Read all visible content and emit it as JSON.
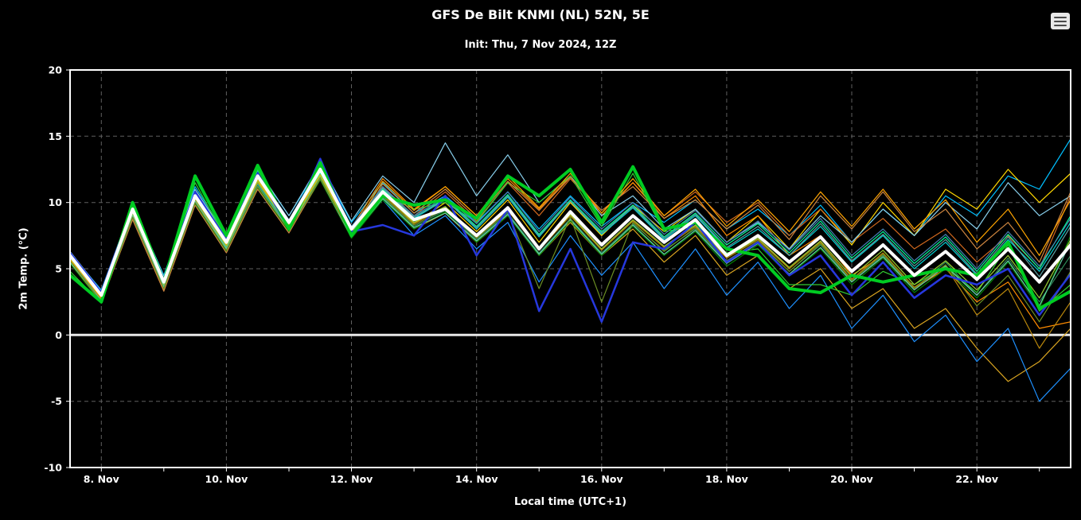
{
  "header": {
    "title": "GFS De Bilt KNMI (NL) 52N, 5E",
    "subtitle": "Init: Thu, 7 Nov 2024, 12Z"
  },
  "menu": {
    "icon": "hamburger-icon"
  },
  "chart_data": {
    "type": "line",
    "title": "GFS De Bilt KNMI (NL) 52N, 5E",
    "subtitle": "Init: Thu, 7 Nov 2024, 12Z",
    "xlabel": "Local time (UTC+1)",
    "ylabel": "2m Temp. (°C)",
    "xlim": [
      7.5,
      23.5
    ],
    "ylim": [
      -10,
      20
    ],
    "grid": true,
    "legend": "none",
    "xticks": [
      {
        "value": 8,
        "label": "8. Nov"
      },
      {
        "value": 10,
        "label": "10. Nov"
      },
      {
        "value": 12,
        "label": "12. Nov"
      },
      {
        "value": 14,
        "label": "14. Nov"
      },
      {
        "value": 16,
        "label": "16. Nov"
      },
      {
        "value": 18,
        "label": "18. Nov"
      },
      {
        "value": 20,
        "label": "20. Nov"
      },
      {
        "value": 22,
        "label": "22. Nov"
      }
    ],
    "yticks": [
      20,
      15,
      10,
      5,
      0,
      -5,
      -10
    ],
    "zero_line": 0,
    "colors": {
      "background": "#000000",
      "frame": "#ffffff",
      "grid": "#5f5f5f",
      "zero": "#e8e8e8",
      "text": "#ffffff"
    },
    "x": [
      7.5,
      8,
      8.5,
      9,
      9.5,
      10,
      10.5,
      11,
      11.5,
      12,
      12.5,
      13,
      13.5,
      14,
      14.5,
      15,
      15.5,
      16,
      16.5,
      17,
      17.5,
      18,
      18.5,
      19,
      19.5,
      20,
      20.5,
      21,
      21.5,
      22,
      22.5,
      23,
      23.5
    ],
    "series": [
      {
        "name": "ens-01",
        "color": "#00bfff",
        "width": 1.2,
        "values": [
          6.2,
          3.4,
          9.8,
          4.5,
          11.2,
          7.5,
          12.4,
          9,
          12.8,
          8.5,
          11.5,
          9.2,
          10.5,
          8.5,
          10.8,
          8,
          10.5,
          8.2,
          10,
          8.5,
          10.2,
          8,
          9.5,
          7.5,
          9.8,
          7,
          9.5,
          7.5,
          10.5,
          9,
          12,
          11,
          14.8
        ]
      },
      {
        "name": "ens-02",
        "color": "#ffd700",
        "width": 1.2,
        "values": [
          5.8,
          2.6,
          9.2,
          3.6,
          10.2,
          6.6,
          11.6,
          8.2,
          12.2,
          7.7,
          11,
          8.4,
          10,
          7.8,
          10.2,
          7,
          10,
          7.5,
          9.8,
          7.8,
          9.5,
          7,
          9,
          6.5,
          9.5,
          6.8,
          10,
          7.5,
          11,
          9.5,
          12.5,
          10,
          12.2
        ]
      },
      {
        "name": "ens-03",
        "color": "#d2691e",
        "width": 1.2,
        "values": [
          5.5,
          2.5,
          8.8,
          3.4,
          10,
          6.4,
          11.2,
          8,
          12,
          7.6,
          11.2,
          9,
          10.8,
          8.6,
          11.5,
          9,
          11.8,
          9.2,
          11.5,
          9,
          10.8,
          8.5,
          10,
          7.5,
          9.5,
          7,
          8.8,
          6.5,
          8,
          5.5,
          7.5,
          5,
          10.5
        ]
      },
      {
        "name": "ens-04",
        "color": "#ff8c00",
        "width": 1.2,
        "values": [
          6.1,
          3.1,
          9.6,
          4.1,
          10.6,
          7.1,
          12.1,
          8.6,
          12.6,
          8.1,
          11.8,
          9.5,
          11.2,
          9,
          11.8,
          9.5,
          12,
          9,
          11.5,
          8.8,
          10.5,
          7.5,
          9,
          6,
          7.5,
          4.5,
          6,
          3.5,
          5,
          2.5,
          4,
          0.5,
          1
        ]
      },
      {
        "name": "ens-05",
        "color": "#daa520",
        "width": 1.2,
        "values": [
          5.9,
          2.9,
          9.3,
          3.9,
          10.3,
          6.8,
          11.8,
          8.3,
          12.3,
          7.8,
          10.5,
          8,
          9.2,
          7,
          9,
          6,
          8.5,
          6,
          8,
          5.5,
          7.5,
          4.5,
          6,
          3.5,
          5,
          2,
          3.5,
          0.5,
          2,
          -1,
          -3.5,
          -2,
          0.5
        ]
      },
      {
        "name": "ens-06",
        "color": "#1e90ff",
        "width": 1.2,
        "values": [
          6,
          3,
          9.4,
          4,
          10.4,
          7,
          11.9,
          8.4,
          12.4,
          7.9,
          10.2,
          7.5,
          9,
          6.5,
          8.5,
          4,
          7.5,
          4.5,
          7,
          3.5,
          6.5,
          3,
          5.5,
          2,
          4.5,
          0.5,
          3,
          -0.5,
          1.5,
          -2,
          0.5,
          -5,
          -2.5
        ]
      },
      {
        "name": "ens-07",
        "color": "#87ceeb",
        "width": 1.2,
        "values": [
          6.3,
          3.3,
          9.9,
          4.4,
          11,
          7.4,
          12.5,
          9,
          13,
          8.6,
          12,
          10,
          14.5,
          10.5,
          13.6,
          10,
          12,
          9,
          10.5,
          8,
          9.5,
          7,
          8.5,
          6.5,
          9,
          7,
          9.5,
          7.5,
          10,
          8,
          11.5,
          9,
          10.5
        ]
      },
      {
        "name": "ens-08",
        "color": "#00ced1",
        "width": 1.2,
        "values": [
          5.7,
          2.7,
          9.1,
          3.7,
          10.1,
          6.6,
          11.4,
          8.1,
          12.1,
          7.7,
          10.9,
          8.8,
          10.2,
          8,
          10.4,
          7.4,
          10.1,
          7.6,
          9.6,
          7.2,
          9,
          6.5,
          8,
          6,
          8.2,
          5.5,
          7.5,
          5,
          7,
          4.5,
          7.2,
          4.8,
          8.5
        ]
      },
      {
        "name": "ens-09",
        "color": "#2e8b57",
        "width": 1.2,
        "values": [
          5.6,
          2.6,
          9,
          3.6,
          10,
          6.5,
          11.3,
          8,
          11.9,
          7.5,
          10.4,
          8.2,
          9.4,
          7.2,
          9.2,
          6.2,
          8.8,
          6.2,
          8.4,
          6.4,
          8,
          5.5,
          7,
          4.8,
          6.8,
          4,
          6,
          3.5,
          5.5,
          3,
          5.8,
          2.5,
          6
        ]
      },
      {
        "name": "ens-10",
        "color": "#32cd32",
        "width": 1.2,
        "values": [
          4.8,
          2.4,
          9.8,
          3.8,
          11.5,
          7.2,
          12.5,
          8,
          12.8,
          7.4,
          10.6,
          9.5,
          10,
          8.5,
          11.5,
          10,
          12,
          8.2,
          12.2,
          7.8,
          8.2,
          6.2,
          6.5,
          3.8,
          3.8,
          3,
          4.8,
          3.8,
          5.2,
          3.2,
          6.8,
          1.8,
          3.8
        ]
      },
      {
        "name": "ens-11",
        "color": "#008000",
        "width": 1.2,
        "values": [
          5.4,
          2.4,
          8.9,
          3.5,
          9.9,
          6.3,
          11.1,
          7.8,
          11.7,
          7.3,
          10.2,
          8,
          9.3,
          7,
          9,
          6,
          8.6,
          6,
          8.2,
          6,
          7.8,
          5.2,
          6.8,
          4.5,
          6.5,
          3.8,
          5.8,
          3.2,
          5,
          2.8,
          5.5,
          2,
          7.5
        ]
      },
      {
        "name": "ens-12",
        "color": "#00fa9a",
        "width": 1.2,
        "values": [
          5.9,
          2.8,
          9.4,
          3.9,
          10.5,
          6.9,
          11.8,
          8.4,
          12.2,
          7.9,
          11,
          8.9,
          10.3,
          8.2,
          10.6,
          7.6,
          10.2,
          7.8,
          9.8,
          7.4,
          9.2,
          6.8,
          8.4,
          6.2,
          8.6,
          5.8,
          7.8,
          5.4,
          7.4,
          4.8,
          7.6,
          5,
          9
        ]
      },
      {
        "name": "ens-13",
        "color": "#cd853f",
        "width": 1.2,
        "values": [
          5.5,
          2.5,
          8.7,
          3.3,
          9.8,
          6.2,
          11,
          7.7,
          11.8,
          7.4,
          11.4,
          9.2,
          11,
          8.8,
          11.6,
          9.4,
          11.9,
          9.4,
          11.2,
          8.8,
          10.2,
          8,
          9.8,
          7.2,
          10.5,
          8,
          10.8,
          7.8,
          9.5,
          6.5,
          8.5,
          5.5,
          10.8
        ]
      },
      {
        "name": "ens-14",
        "color": "#b8860b",
        "width": 1.2,
        "values": [
          5.8,
          2.7,
          9.2,
          3.8,
          10.2,
          6.7,
          11.5,
          8.2,
          12,
          7.6,
          10.6,
          8.4,
          9.6,
          7.4,
          9.4,
          6.4,
          9,
          6.4,
          8.6,
          6.6,
          8.2,
          5.8,
          7.2,
          5,
          7,
          4.2,
          6.2,
          3.6,
          5.2,
          1.5,
          3.5,
          -1,
          2.5
        ]
      },
      {
        "name": "ens-15",
        "color": "#4682b4",
        "width": 1.2,
        "values": [
          6.1,
          3.2,
          9.7,
          4.2,
          10.8,
          7.2,
          12.2,
          8.7,
          12.7,
          8.2,
          11.2,
          9,
          10.4,
          8.4,
          10.8,
          7.8,
          10.4,
          8,
          10,
          7.6,
          9.4,
          7,
          8.6,
          6.4,
          8.8,
          6,
          8,
          5.6,
          7.6,
          5,
          7.8,
          5.2,
          8.8
        ]
      },
      {
        "name": "ens-16",
        "color": "#66cdaa",
        "width": 1.2,
        "values": [
          5.5,
          2.6,
          9,
          3.6,
          10.1,
          6.5,
          11.2,
          8,
          11.8,
          7.4,
          10.3,
          8.1,
          9.2,
          7.1,
          9.1,
          6.1,
          8.7,
          6.1,
          8.3,
          6.1,
          7.9,
          5.4,
          6.9,
          4.6,
          6.6,
          4,
          5.9,
          3.4,
          5.2,
          3,
          5.6,
          2.2,
          7
        ]
      },
      {
        "name": "ens-17",
        "color": "#ffa500",
        "width": 1.2,
        "values": [
          5.7,
          2.8,
          9.3,
          3.9,
          10.4,
          6.8,
          11.7,
          8.3,
          12.1,
          7.8,
          11.6,
          9.4,
          11.2,
          9,
          12,
          9.6,
          12.2,
          9.2,
          11.8,
          9,
          11,
          8.2,
          10.2,
          7.8,
          10.8,
          8.2,
          11,
          8,
          10.2,
          7,
          9.5,
          6,
          10.2
        ]
      },
      {
        "name": "ens-18",
        "color": "#6b8e23",
        "width": 1.2,
        "values": [
          5.6,
          2.5,
          8.9,
          3.5,
          10,
          6.4,
          11.2,
          7.9,
          11.8,
          7.5,
          10.5,
          8.3,
          9.5,
          7.3,
          9.3,
          3.5,
          8.9,
          2.5,
          8.5,
          6.3,
          8.1,
          5.6,
          7.1,
          4.8,
          6.9,
          4.1,
          6.1,
          3.5,
          5.3,
          2.2,
          4.5,
          1,
          4.8
        ]
      },
      {
        "name": "ens-19",
        "color": "#5f9ea0",
        "width": 1.2,
        "values": [
          6,
          3.1,
          9.6,
          4.1,
          10.7,
          7.1,
          12,
          8.6,
          12.5,
          8,
          11.1,
          8.9,
          10.2,
          8.1,
          10.5,
          7.5,
          10.1,
          7.7,
          9.7,
          7.3,
          9.1,
          6.6,
          8.2,
          6,
          8.4,
          5.6,
          7.6,
          5.2,
          7.2,
          4.6,
          7.4,
          4.4,
          8.2
        ]
      },
      {
        "name": "ens-20",
        "color": "#9acd32",
        "width": 1.2,
        "values": [
          5.8,
          2.9,
          9.2,
          3.8,
          10.3,
          6.7,
          11.6,
          8.1,
          12,
          7.7,
          10.7,
          8.5,
          9.7,
          7.5,
          9.5,
          6.5,
          9.1,
          6.5,
          8.7,
          6.7,
          8.3,
          5.9,
          7.3,
          5.1,
          7.1,
          4.4,
          6.4,
          3.8,
          5.6,
          3.4,
          6,
          2.8,
          7.2
        ]
      },
      {
        "name": "operational",
        "color": "#2638dd",
        "width": 2.5,
        "values": [
          6.2,
          3.2,
          9.8,
          4.2,
          10.8,
          7.2,
          12.2,
          8,
          13.3,
          7.8,
          8.3,
          7.5,
          10.5,
          6,
          9.5,
          1.8,
          6.5,
          1,
          7,
          6.5,
          8.5,
          5.5,
          7,
          4.5,
          6,
          3,
          5.5,
          2.8,
          4.5,
          3.8,
          5,
          1.5,
          4.6
        ]
      },
      {
        "name": "control",
        "color": "#00cc22",
        "width": 4,
        "values": [
          4.5,
          2.5,
          10,
          4,
          12,
          7.5,
          12.8,
          8,
          13,
          7.5,
          10.5,
          9.8,
          10.2,
          8.8,
          12,
          10.5,
          12.5,
          8.5,
          12.7,
          8,
          8.5,
          6.5,
          6,
          3.5,
          3.2,
          4.5,
          4,
          4.5,
          5,
          4.5,
          7,
          2,
          3.3
        ]
      },
      {
        "name": "ensemble-mean",
        "color": "#ffffff",
        "width": 4,
        "values": [
          6,
          3,
          9.5,
          4,
          10.5,
          7,
          12,
          8.5,
          12.5,
          8,
          10.8,
          8.7,
          9.5,
          7.5,
          9.6,
          6.5,
          9.3,
          6.8,
          9,
          7,
          8.7,
          6,
          7.5,
          5.5,
          7.4,
          4.8,
          6.8,
          4.5,
          6.3,
          4.2,
          6.5,
          4,
          6.8
        ]
      }
    ]
  }
}
